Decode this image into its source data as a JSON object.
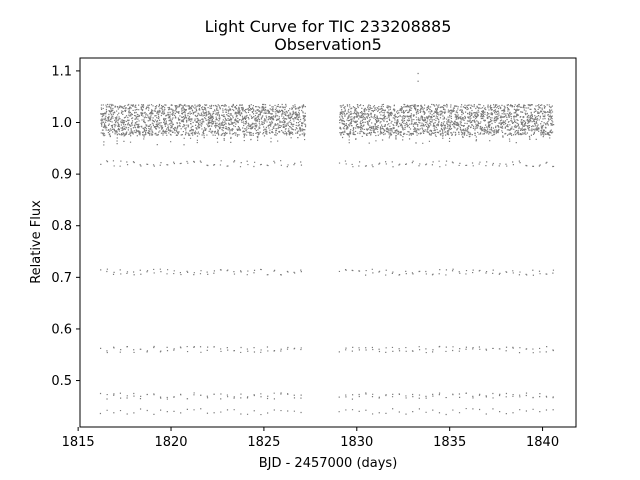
{
  "chart_data": {
    "type": "scatter",
    "title": "Light Curve for TIC 233208885",
    "subtitle": "Observation5",
    "xlabel": "BJD - 2457000 (days)",
    "ylabel": "Relative Flux",
    "xlim": [
      1815.1,
      1841.8
    ],
    "ylim": [
      0.41,
      1.125
    ],
    "x_ticks": [
      1815,
      1820,
      1825,
      1830,
      1835,
      1840
    ],
    "y_ticks": [
      0.5,
      0.6,
      0.7,
      0.8,
      0.9,
      1.0,
      1.1
    ],
    "grid": false,
    "marker_color": "#7a7a7a",
    "series": [
      {
        "name": "flux",
        "segments": [
          {
            "x_start": 1816.2,
            "x_end": 1827.25
          },
          {
            "x_start": 1829.05,
            "x_end": 1840.6
          }
        ],
        "baseline_flux": 1.0,
        "baseline_scatter_max": 1.05,
        "eclipse_min_flux": 0.44,
        "period_days": 0.36,
        "outlier": {
          "x": 1833.3,
          "y": 1.095
        }
      }
    ]
  }
}
